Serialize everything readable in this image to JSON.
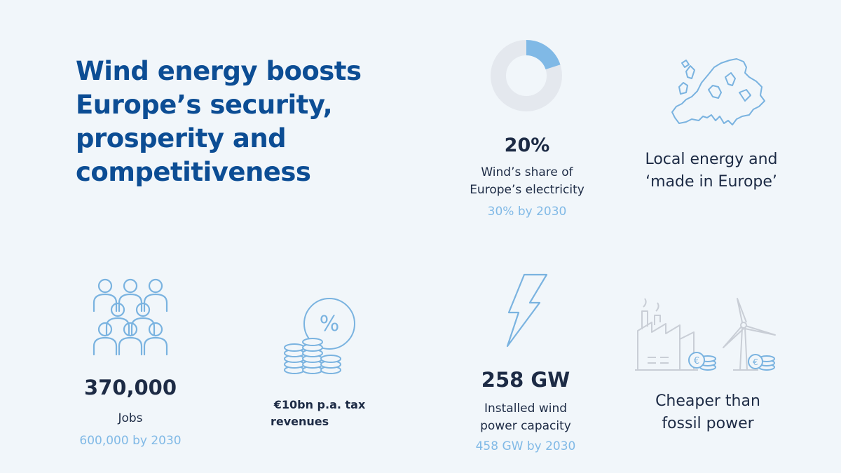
{
  "title_lines": [
    "Wind energy boosts",
    "Europe’s security,",
    "prosperity and",
    "competitiveness"
  ],
  "share": {
    "value": "20%",
    "fraction": 0.2,
    "label_lines": [
      "Wind’s share of",
      "Europe’s electricity"
    ],
    "target": "30% by 2030"
  },
  "local": {
    "label_lines": [
      "Local energy and",
      "‘made in Europe’"
    ],
    "icon": "europe-map-icon"
  },
  "jobs": {
    "value": "370,000",
    "label": "Jobs",
    "target": "600,000 by 2030",
    "icon": "people-group-icon"
  },
  "tax": {
    "label_lines": [
      "€10bn p.a. tax",
      "revenues"
    ],
    "icon": "coins-percent-icon"
  },
  "capacity": {
    "value": "258 GW",
    "label_lines": [
      "Installed wind",
      "power capacity"
    ],
    "target": "458 GW by 2030",
    "icon": "lightning-bolt-icon"
  },
  "cheaper": {
    "label_lines": [
      "Cheaper than",
      "fossil power"
    ],
    "icon": "factory-vs-turbine-icon"
  },
  "colors": {
    "title": "#0c4d94",
    "text": "#1d2b45",
    "accent": "#80b9e6",
    "icon_stroke": "#7ab3e0",
    "donut_track": "#e4e8ee",
    "background": "#f1f6fa"
  }
}
